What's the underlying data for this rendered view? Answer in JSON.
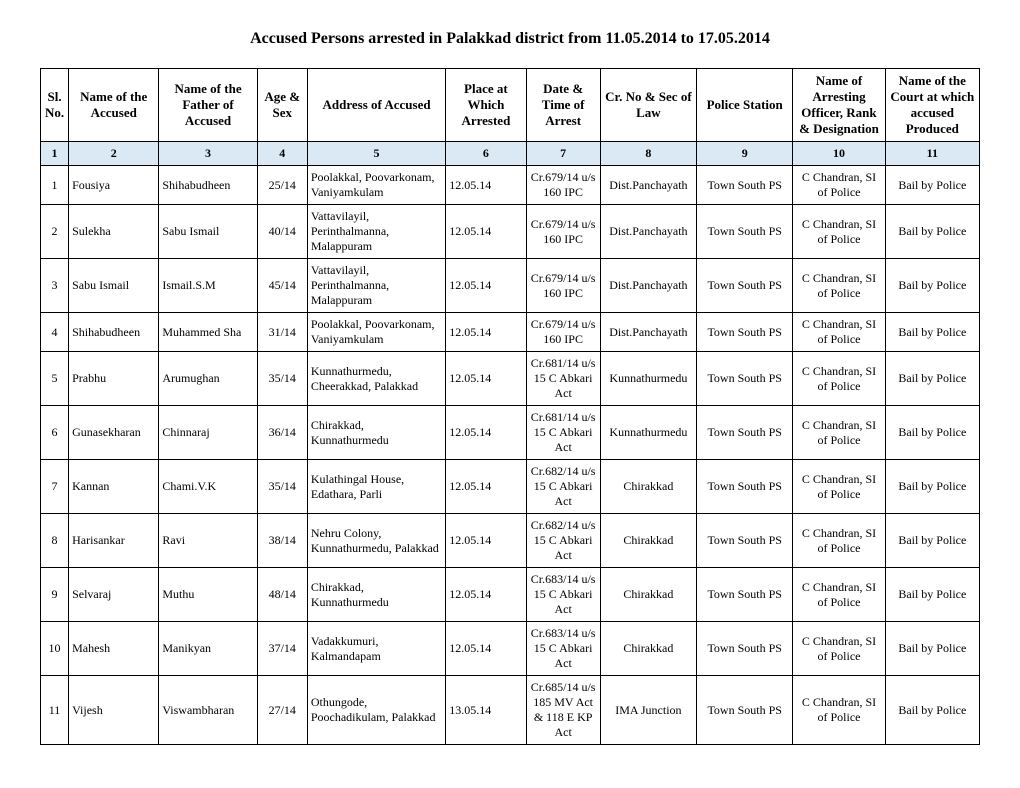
{
  "title": "Accused Persons arrested in Palakkad district from 11.05.2014 to 17.05.2014",
  "headers": {
    "h1": "Sl. No.",
    "h2": "Name of the Accused",
    "h3": "Name of the Father of Accused",
    "h4": "Age & Sex",
    "h5": "Address of Accused",
    "h6": "Place at Which Arrested",
    "h7": "Date & Time of Arrest",
    "h8": "Cr. No & Sec of Law",
    "h9": "Police Station",
    "h10": "Name of Arresting Officer, Rank & Designation",
    "h11": "Name of the Court at which accused Produced"
  },
  "numRow": {
    "n1": "1",
    "n2": "2",
    "n3": "3",
    "n4": "4",
    "n5": "5",
    "n6": "6",
    "n7": "7",
    "n8": "8",
    "n9": "9",
    "n10": "10",
    "n11": "11"
  },
  "rows": [
    {
      "sl": "1",
      "name": "Fousiya",
      "father": "Shihabudheen",
      "age": "25/14",
      "addr": "Poolakkal, Poovarkonam, Vaniyamkulam",
      "date": "12.05.14",
      "time": "",
      "law": "Cr.679/14 u/s 160 IPC",
      "station": "Dist.Panchayath",
      "officer": "Town South PS",
      "court_officer": "C Chandran, SI of Police",
      "court": "Bail by Police"
    },
    {
      "sl": "2",
      "name": "Sulekha",
      "father": "Sabu Ismail",
      "age": "40/14",
      "addr": "Vattavilayil, Perinthalmanna, Malappuram",
      "date": "12.05.14",
      "time": "",
      "law": "Cr.679/14 u/s 160 IPC",
      "station": "Dist.Panchayath",
      "officer": "Town South PS",
      "court_officer": "C Chandran, SI of Police",
      "court": "Bail by Police"
    },
    {
      "sl": "3",
      "name": "Sabu Ismail",
      "father": "Ismail.S.M",
      "age": "45/14",
      "addr": "Vattavilayil, Perinthalmanna, Malappuram",
      "date": "12.05.14",
      "time": "",
      "law": "Cr.679/14 u/s 160 IPC",
      "station": "Dist.Panchayath",
      "officer": "Town South PS",
      "court_officer": "C Chandran, SI of Police",
      "court": "Bail by Police"
    },
    {
      "sl": "4",
      "name": "Shihabudheen",
      "father": "Muhammed Sha",
      "age": "31/14",
      "addr": "Poolakkal, Poovarkonam, Vaniyamkulam",
      "date": "12.05.14",
      "time": "",
      "law": "Cr.679/14 u/s 160 IPC",
      "station": "Dist.Panchayath",
      "officer": "Town South PS",
      "court_officer": "C Chandran, SI of Police",
      "court": "Bail by Police"
    },
    {
      "sl": "5",
      "name": "Prabhu",
      "father": "Arumughan",
      "age": "35/14",
      "addr": "Kunnathurmedu, Cheerakkad, Palakkad",
      "date": "12.05.14",
      "time": "",
      "law": "Cr.681/14 u/s 15 C Abkari Act",
      "station": "Kunnathurmedu",
      "officer": "Town South PS",
      "court_officer": "C Chandran, SI of Police",
      "court": "Bail by Police"
    },
    {
      "sl": "6",
      "name": "Gunasekharan",
      "father": "Chinnaraj",
      "age": "36/14",
      "addr": "Chirakkad, Kunnathurmedu",
      "date": "12.05.14",
      "time": "",
      "law": "Cr.681/14 u/s 15 C Abkari Act",
      "station": "Kunnathurmedu",
      "officer": "Town South PS",
      "court_officer": "C Chandran, SI of Police",
      "court": "Bail by Police"
    },
    {
      "sl": "7",
      "name": "Kannan",
      "father": "Chami.V.K",
      "age": "35/14",
      "addr": "Kulathingal House, Edathara, Parli",
      "date": "12.05.14",
      "time": "",
      "law": "Cr.682/14 u/s 15 C Abkari Act",
      "station": "Chirakkad",
      "officer": "Town South PS",
      "court_officer": "C Chandran, SI of Police",
      "court": "Bail by Police"
    },
    {
      "sl": "8",
      "name": "Harisankar",
      "father": "Ravi",
      "age": "38/14",
      "addr": "Nehru Colony, Kunnathurmedu, Palakkad",
      "date": "12.05.14",
      "time": "",
      "law": "Cr.682/14 u/s 15 C Abkari Act",
      "station": "Chirakkad",
      "officer": "Town South PS",
      "court_officer": "C Chandran, SI of Police",
      "court": "Bail by Police"
    },
    {
      "sl": "9",
      "name": "Selvaraj",
      "father": "Muthu",
      "age": "48/14",
      "addr": "Chirakkad, Kunnathurmedu",
      "date": "12.05.14",
      "time": "",
      "law": "Cr.683/14 u/s 15 C Abkari Act",
      "station": "Chirakkad",
      "officer": "Town South PS",
      "court_officer": "C Chandran, SI of Police",
      "court": "Bail by Police"
    },
    {
      "sl": "10",
      "name": "Mahesh",
      "father": "Manikyan",
      "age": "37/14",
      "addr": "Vadakkumuri, Kalmandapam",
      "date": "12.05.14",
      "time": "",
      "law": "Cr.683/14 u/s 15 C Abkari Act",
      "station": "Chirakkad",
      "officer": "Town South PS",
      "court_officer": "C Chandran, SI of Police",
      "court": "Bail by Police"
    },
    {
      "sl": "11",
      "name": "Vijesh",
      "father": "Viswambharan",
      "age": "27/14",
      "addr": "Othungode, Poochadikulam, Palakkad",
      "date": "13.05.14",
      "time": "",
      "law": "Cr.685/14 u/s 185 MV Act & 118 E KP Act",
      "station": "IMA Junction",
      "officer": "Town South PS",
      "court_officer": "C Chandran, SI of Police",
      "court": "Bail by Police"
    }
  ]
}
